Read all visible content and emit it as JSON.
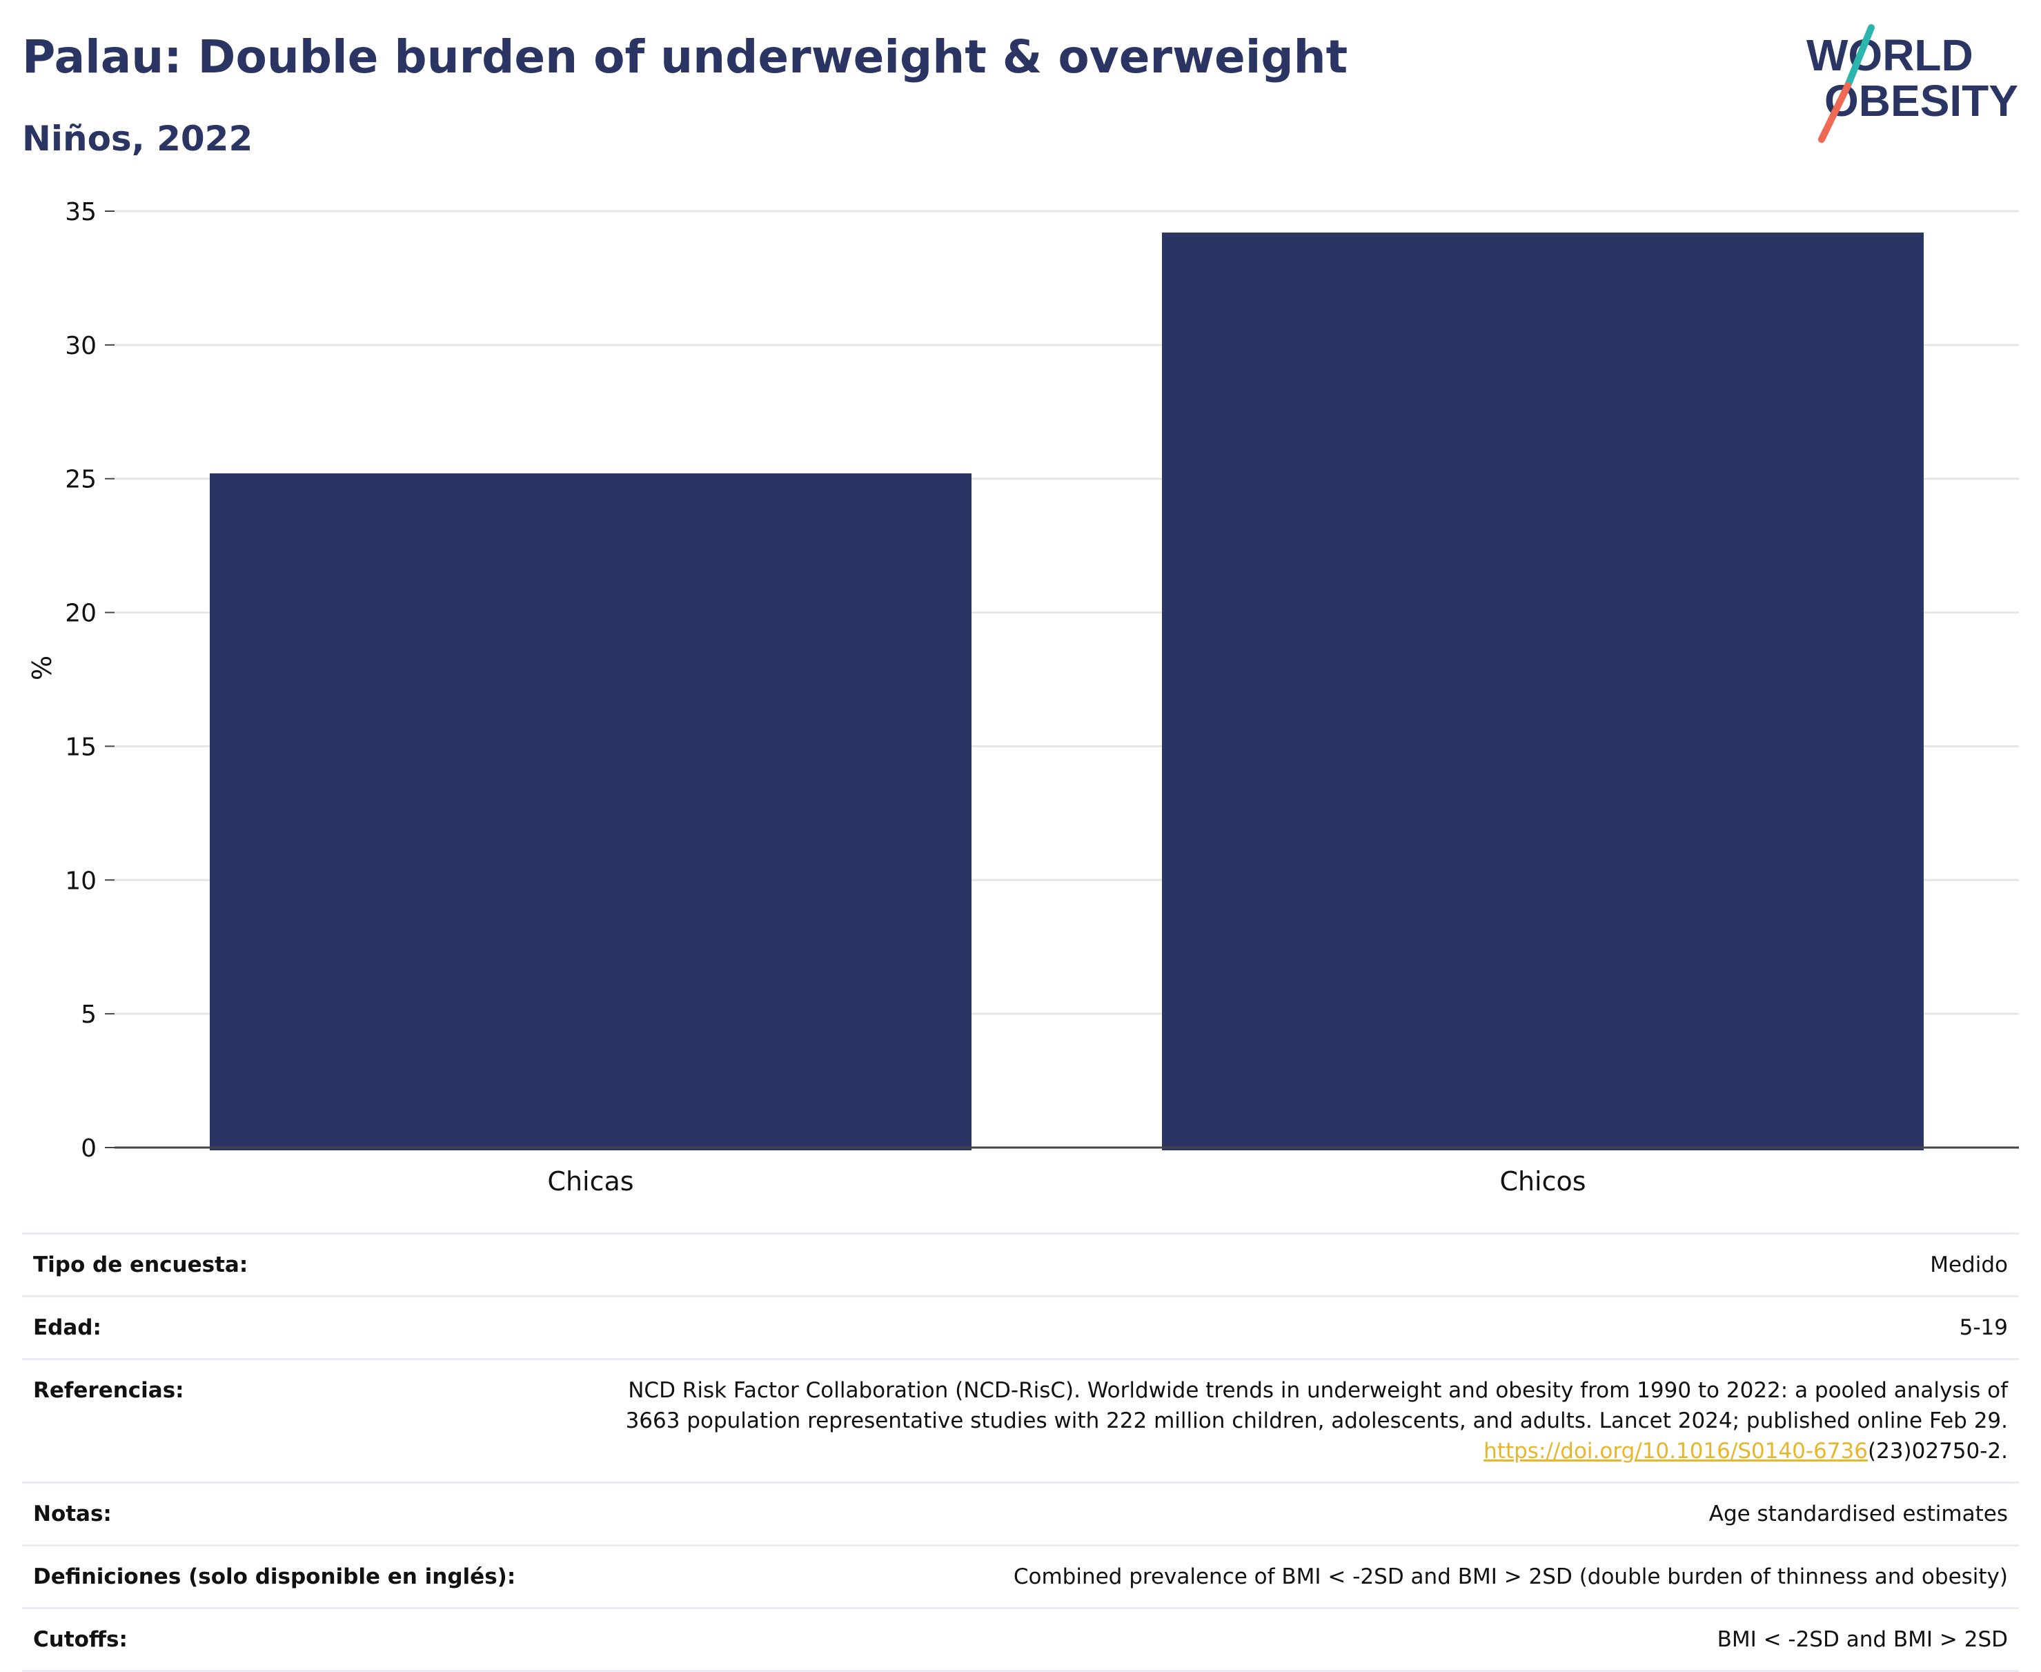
{
  "header": {
    "title": "Palau: Double burden of underweight & overweight",
    "subtitle": "Niños, 2022"
  },
  "logo": {
    "line1": "WORLD",
    "line2": "OBESITY",
    "text_color": "#2a3563",
    "slash_color_top": "#2bb5ad",
    "slash_color_bottom": "#ee6a54"
  },
  "chart_data": {
    "type": "bar",
    "categories": [
      "Chicas",
      "Chicos"
    ],
    "values": [
      25.2,
      34.2
    ],
    "title": "Palau: Double burden of underweight & overweight",
    "subtitle": "Niños, 2022",
    "xlabel": "",
    "ylabel": "%",
    "ylim": [
      0,
      35
    ],
    "yticks": [
      0,
      5,
      10,
      15,
      20,
      25,
      30,
      35
    ],
    "grid": true,
    "bar_color": "#2a3563"
  },
  "info": {
    "rows": [
      {
        "label": "Tipo de encuesta:",
        "value": "Medido"
      },
      {
        "label": "Edad:",
        "value": "5-19"
      },
      {
        "label": "Referencias:",
        "value_line1": "NCD Risk Factor Collaboration (NCD-RisC). Worldwide trends in underweight and obesity from 1990 to 2022: a pooled analysis of",
        "value_line2": "3663 population representative studies with 222 million children, adolescents, and adults. Lancet 2024; published online Feb 29.",
        "link_text": "https://doi.org/10.1016/S0140-6736",
        "link_suffix": "(23)02750-2."
      },
      {
        "label": "Notas:",
        "value": "Age standardised estimates"
      },
      {
        "label": "Definiciones (solo disponible en inglés):",
        "value": "Combined prevalence of BMI < -2SD and BMI > 2SD (double burden of thinness and obesity)"
      },
      {
        "label": "Cutoffs:",
        "value": "BMI < -2SD and BMI > 2SD"
      }
    ]
  }
}
